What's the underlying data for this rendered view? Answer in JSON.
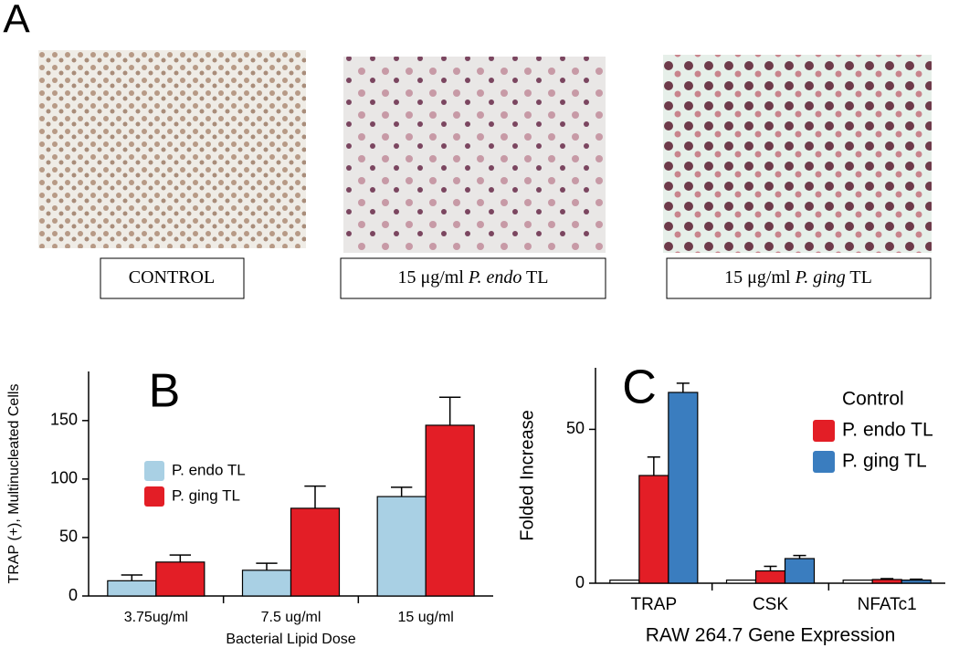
{
  "panel_a": {
    "label": "A",
    "captions": [
      [
        "CONTROL"
      ],
      [
        "15 μg/ml ",
        "P. endo",
        " TL"
      ],
      [
        "15 μg/ml ",
        "P. ging",
        " TL"
      ]
    ]
  },
  "chart_data": [
    {
      "type": "bar",
      "panel_label": "B",
      "y_label": "TRAP (+), Multinucleated Cells",
      "x_label": "Bacterial Lipid Dose",
      "categories": [
        "3.75ug/ml",
        "7.5 ug/ml",
        "15 ug/ml"
      ],
      "series": [
        {
          "name": "P. endo TL",
          "color": "#a9d0e4",
          "values": [
            13,
            22,
            85
          ],
          "errors": [
            5,
            6,
            8
          ]
        },
        {
          "name": "P. ging TL",
          "color": "#e31e26",
          "values": [
            29,
            75,
            146
          ],
          "errors": [
            6,
            19,
            24
          ]
        }
      ],
      "ylim": [
        0,
        192
      ],
      "yticks": [
        0,
        50,
        100,
        150
      ],
      "legend": "upper left"
    },
    {
      "type": "bar",
      "panel_label": "C",
      "y_label": "Folded Increase",
      "x_label": "RAW 264.7 Gene Expression",
      "categories": [
        "TRAP",
        "CSK",
        "NFATc1"
      ],
      "series": [
        {
          "name": "Control",
          "color": "#ffffff",
          "values": [
            1,
            1,
            1
          ]
        },
        {
          "name": "P. endo TL",
          "color": "#e31e26",
          "values": [
            35,
            4,
            1.2
          ],
          "errors": [
            6,
            1.5,
            0.3
          ]
        },
        {
          "name": "P. ging TL",
          "color": "#3a7dbf",
          "values": [
            62,
            8,
            1
          ],
          "errors": [
            3,
            1,
            0.3
          ]
        }
      ],
      "ylim": [
        0,
        70
      ],
      "yticks": [
        0,
        50
      ],
      "legend": "upper right"
    }
  ]
}
